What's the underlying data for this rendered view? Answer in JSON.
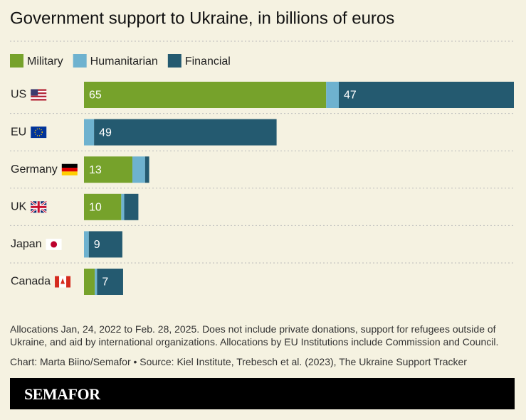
{
  "chart_data": {
    "type": "stacked-bar-horizontal",
    "title": "Government support to Ukraine, in billions of euros",
    "categories": [
      "US",
      "EU",
      "Germany",
      "UK",
      "Japan",
      "Canada"
    ],
    "series": [
      {
        "name": "Military",
        "color": "#76a22b",
        "values": [
          65,
          0,
          13,
          10,
          0,
          2.9
        ]
      },
      {
        "name": "Humanitarian",
        "color": "#6eb2cf",
        "values": [
          3.4,
          2.7,
          3.4,
          0.8,
          1.3,
          0.6
        ]
      },
      {
        "name": "Financial",
        "color": "#245a70",
        "values": [
          47,
          49,
          1.1,
          3.8,
          9,
          7
        ]
      }
    ],
    "note": "Allocations Jan, 24, 2022 to Feb. 28, 2025. Does not include private donations, support for refugees outside of Ukraine, and aid by international organizations. Allocations by EU Institutions include Commission and Council.",
    "credit": "Chart: Marta Biino/Semafor • Source: Kiel Institute, Trebesch et al. (2023), The Ukraine Support Tracker",
    "brand": "SEMAFOR"
  }
}
